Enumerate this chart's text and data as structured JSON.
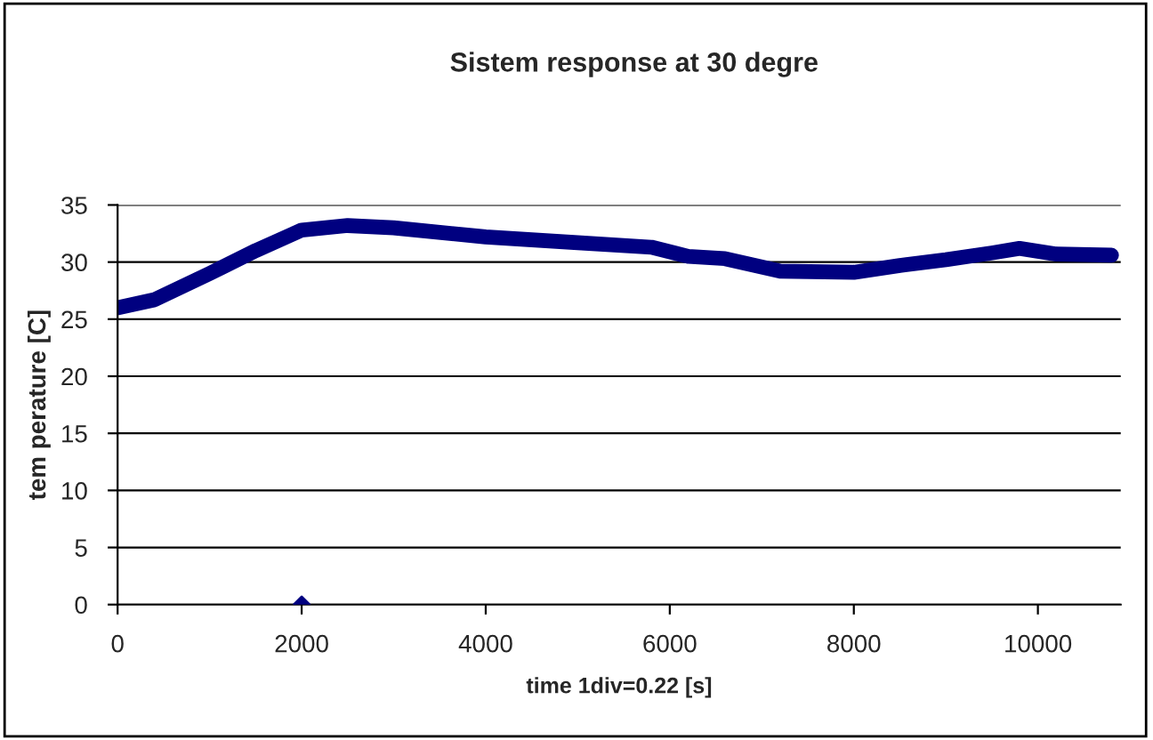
{
  "chart_data": {
    "type": "line",
    "title": "Sistem response at 30 degre",
    "xlabel": "time 1div=0.22 [s]",
    "ylabel": "tem perature [C]",
    "series": [
      {
        "color": "#000080",
        "x": [
          0,
          400,
          1000,
          1500,
          2000,
          2500,
          3000,
          4000,
          5000,
          5800,
          6200,
          6600,
          7200,
          8000,
          8500,
          9000,
          9500,
          9800,
          10200,
          10800
        ],
        "values": [
          26,
          26.7,
          29,
          31,
          32.8,
          33.2,
          33,
          32.2,
          31.7,
          31.3,
          30.5,
          30.3,
          29.2,
          29.1,
          29.7,
          30.2,
          30.8,
          31.2,
          30.7,
          30.6
        ]
      },
      {
        "type": "scatter",
        "marker": "diamond",
        "color": "#000080",
        "x": [
          2000
        ],
        "values": [
          0
        ]
      }
    ],
    "xlim": [
      0,
      10900
    ],
    "xticks": [
      0,
      2000,
      4000,
      6000,
      8000,
      10000
    ],
    "ylim": [
      0,
      35
    ],
    "yticks": [
      0,
      5,
      10,
      15,
      20,
      25,
      30,
      35
    ],
    "grid": "y",
    "legend": false
  }
}
